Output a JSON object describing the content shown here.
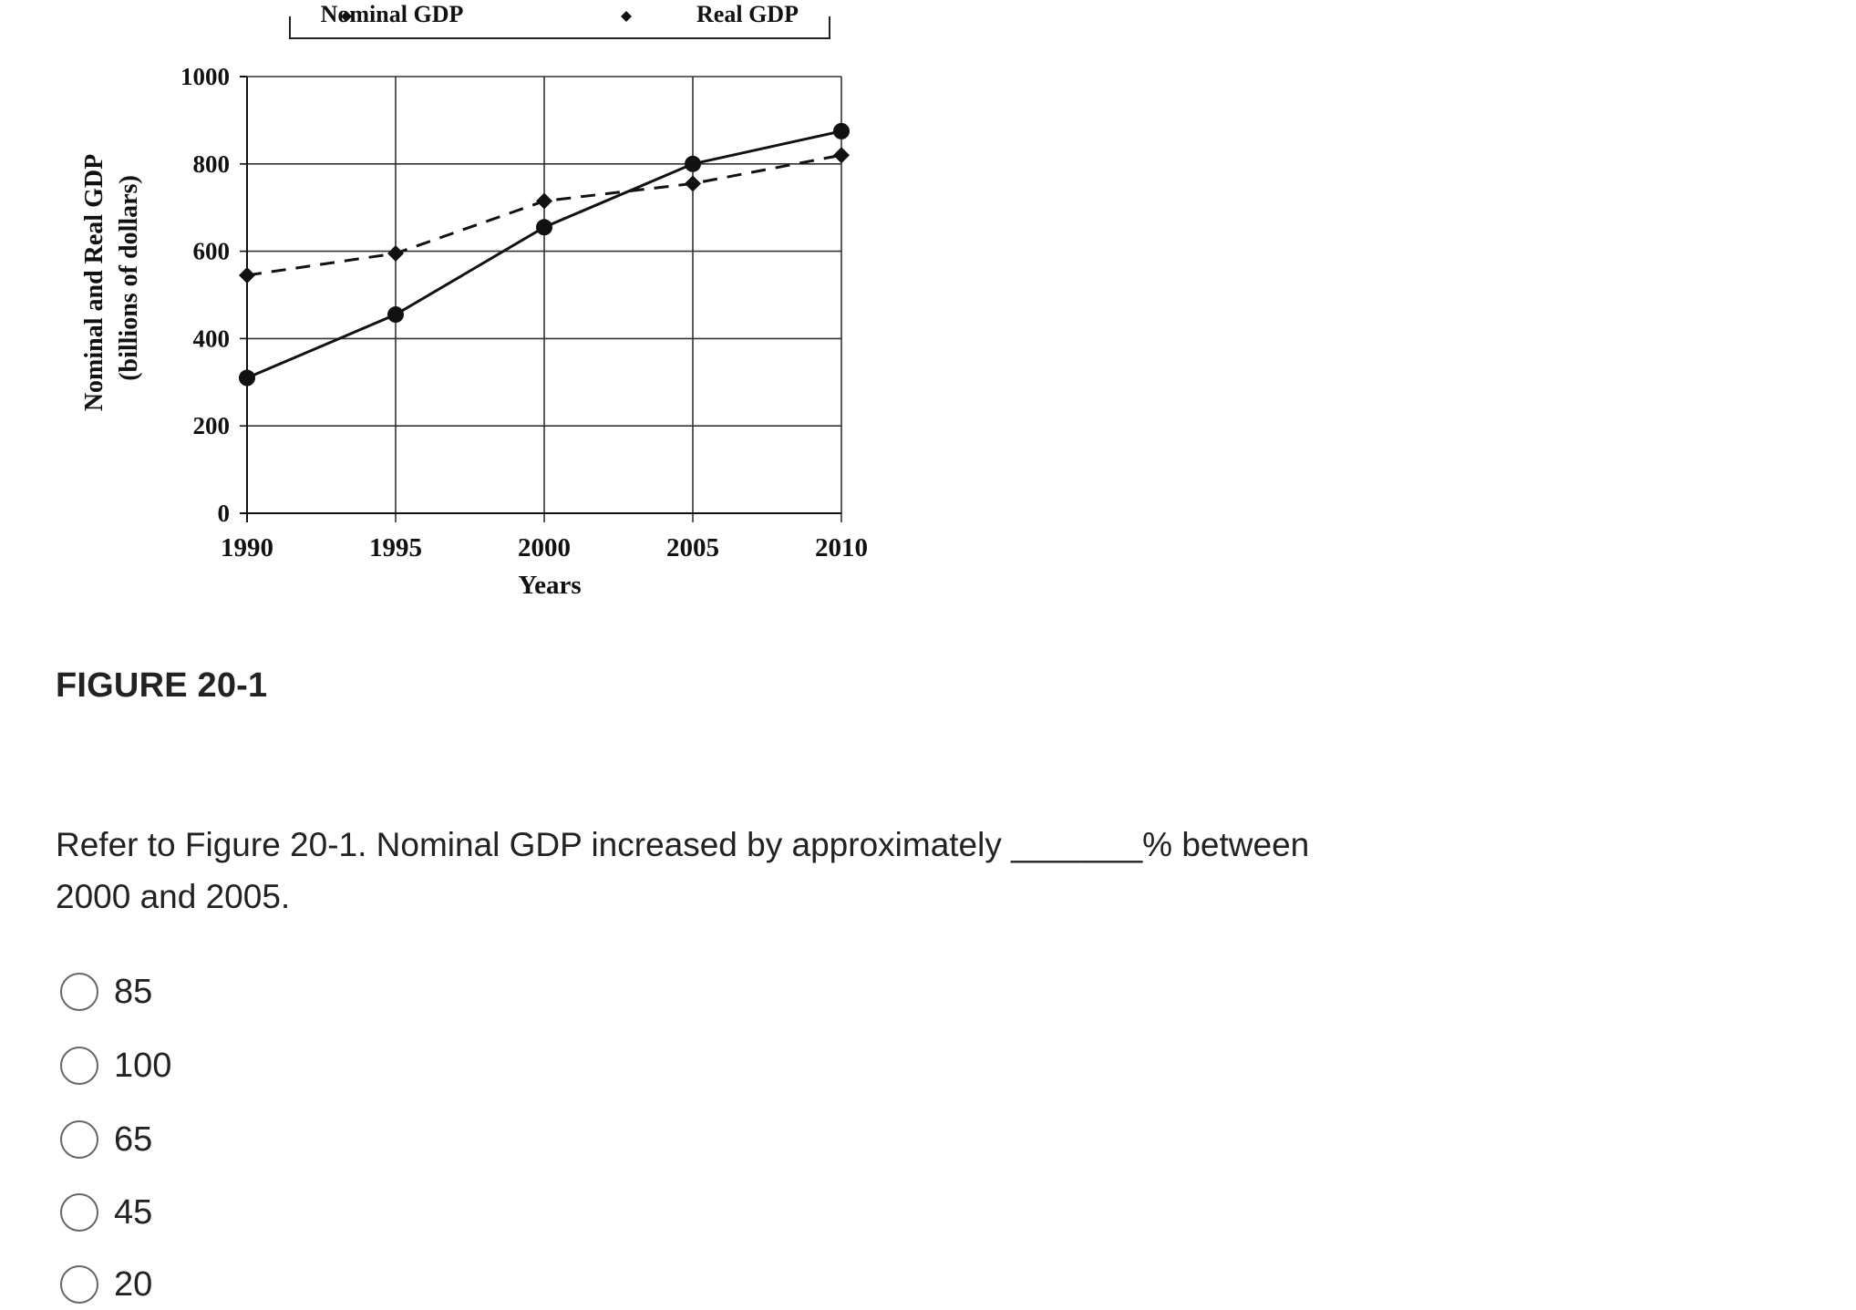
{
  "chart_data": {
    "type": "line",
    "title": "",
    "legend": {
      "position": "top (cropped)",
      "entries": [
        "Nominal GDP",
        "Real GDP"
      ]
    },
    "x": [
      1990,
      1995,
      2000,
      2005,
      2010
    ],
    "x_tick_labels": [
      "1990",
      "1995",
      "2000",
      "2005",
      "2010"
    ],
    "y_tick_labels": [
      "0",
      "200",
      "400",
      "600",
      "800",
      "1000"
    ],
    "ylim": [
      0,
      1000
    ],
    "grid": true,
    "xlabel": "Years",
    "ylabel": "Nominal and Real GDP",
    "ylabel_units": "(billions of dollars)",
    "series": [
      {
        "name": "Nominal GDP",
        "style": "solid",
        "marker": "circle",
        "values": [
          310,
          455,
          655,
          800,
          875
        ]
      },
      {
        "name": "Real GDP",
        "style": "dashed",
        "marker": "diamond",
        "values": [
          545,
          595,
          715,
          755,
          820
        ]
      }
    ]
  },
  "figure": {
    "caption": "FIGURE 20-1"
  },
  "question": {
    "line1": "Refer to Figure 20-1. Nominal GDP increased by approximately _______% between",
    "line2": "2000 and 2005."
  },
  "answers": [
    {
      "label": "85"
    },
    {
      "label": "100"
    },
    {
      "label": "65"
    },
    {
      "label": "45"
    },
    {
      "label": "20"
    }
  ],
  "colors": {
    "text": "#222222",
    "chart_ink": "#111111",
    "grid": "#333333",
    "radio_border": "#666666",
    "background": "#ffffff"
  }
}
